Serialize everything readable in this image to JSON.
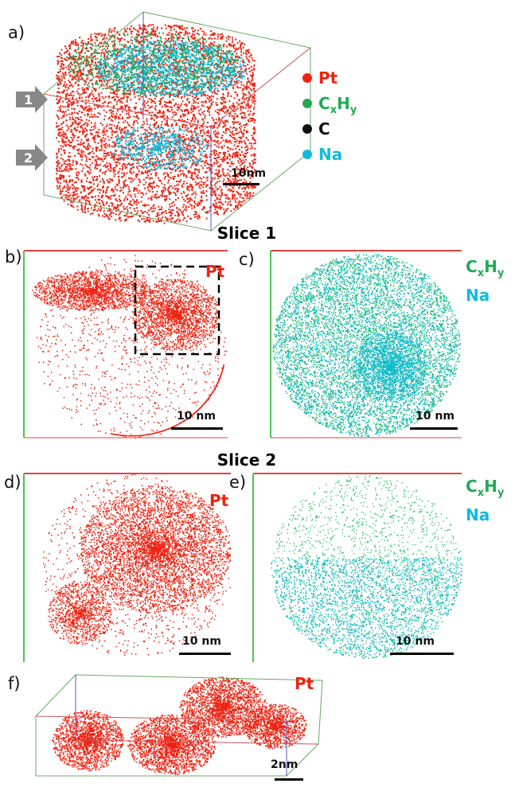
{
  "panels": {
    "a": {
      "label": "a)",
      "arrows": [
        "1",
        "2"
      ],
      "scale": "10nm",
      "legend": [
        {
          "parts": [
            "Pt"
          ]
        },
        {
          "parts": [
            "C",
            "x",
            "H",
            "y"
          ]
        },
        {
          "parts": [
            "C"
          ]
        },
        {
          "parts": [
            "Na"
          ]
        }
      ]
    },
    "slice1": "Slice 1",
    "b": {
      "label": "b)",
      "species": "Pt",
      "scale": "10 nm"
    },
    "c": {
      "label": "c)",
      "species": [
        "C",
        "x",
        "H",
        "y"
      ],
      "species2": "Na",
      "scale": "10 nm"
    },
    "slice2": "Slice 2",
    "d": {
      "label": "d)",
      "species": "Pt",
      "scale": "10 nm"
    },
    "e": {
      "label": "e)",
      "species": [
        "C",
        "x",
        "H",
        "y"
      ],
      "species2": "Na",
      "scale": "10 nm"
    },
    "f": {
      "label": "f)",
      "species": "Pt",
      "scale": "2nm"
    }
  }
}
